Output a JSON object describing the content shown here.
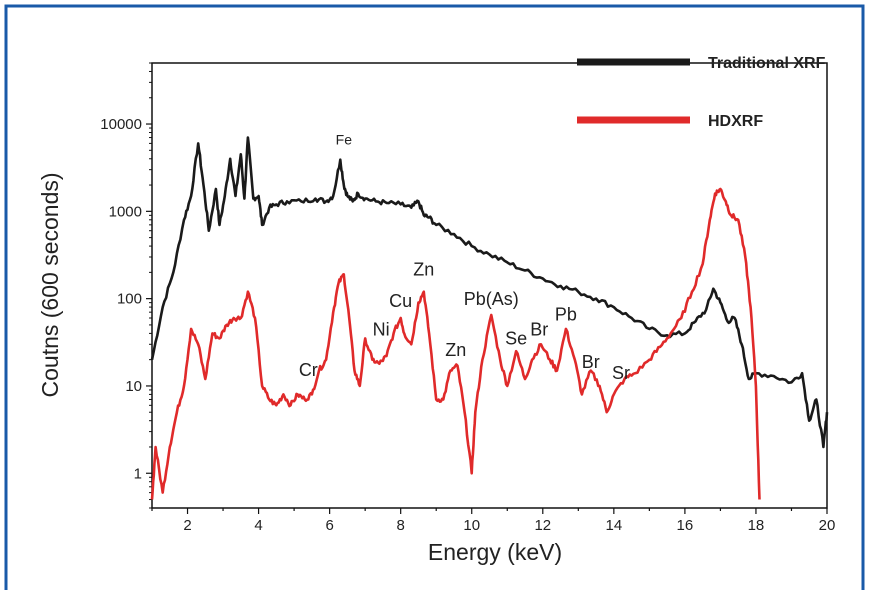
{
  "chart_data": {
    "type": "line",
    "title": "",
    "xlabel": "Energy (keV)",
    "ylabel": "Coutns (600 seconds)",
    "xlim": [
      1,
      20
    ],
    "ylim": [
      0.4,
      50000
    ],
    "y_scale": "log",
    "x_ticks": [
      2,
      4,
      6,
      8,
      10,
      12,
      14,
      16,
      18,
      20
    ],
    "x_tick_labels": [
      "2",
      "4",
      "6",
      "8",
      "10",
      "12",
      "14",
      "16",
      "18",
      "20"
    ],
    "y_ticks": [
      1,
      10,
      100,
      1000,
      10000
    ],
    "y_tick_labels": [
      "1",
      "10",
      "100",
      "1000",
      "10000"
    ],
    "grid": false,
    "legend_position": "top-right",
    "series": [
      {
        "name": "Traditional XRF",
        "color": "#1a1a1a",
        "x": [
          1.0,
          1.3,
          1.6,
          1.9,
          2.1,
          2.3,
          2.45,
          2.6,
          2.8,
          2.9,
          3.05,
          3.2,
          3.35,
          3.5,
          3.6,
          3.7,
          3.85,
          4.0,
          4.1,
          4.3,
          4.5,
          4.8,
          5.2,
          5.6,
          5.9,
          6.1,
          6.3,
          6.4,
          6.5,
          6.65,
          6.8,
          7.0,
          7.3,
          7.6,
          8.0,
          8.3,
          8.5,
          8.65,
          8.8,
          9.0,
          9.5,
          10.0,
          10.5,
          11.0,
          11.5,
          12.0,
          12.5,
          13.0,
          13.5,
          14.0,
          14.5,
          15.0,
          15.5,
          16.0,
          16.3,
          16.6,
          16.8,
          17.0,
          17.2,
          17.4,
          17.6,
          17.8,
          18.0,
          18.5,
          19.0,
          19.3,
          19.5,
          19.7,
          19.9,
          20.0
        ],
        "values": [
          20,
          80,
          200,
          800,
          1500,
          6000,
          2000,
          600,
          1800,
          700,
          1500,
          4000,
          1500,
          4500,
          1400,
          7000,
          1400,
          1500,
          700,
          1100,
          1200,
          1300,
          1300,
          1400,
          1300,
          1500,
          3900,
          2000,
          1500,
          1300,
          1600,
          1400,
          1300,
          1250,
          1200,
          1100,
          1300,
          900,
          850,
          700,
          550,
          400,
          320,
          260,
          210,
          170,
          140,
          120,
          100,
          80,
          60,
          45,
          38,
          40,
          55,
          75,
          130,
          90,
          55,
          60,
          30,
          12,
          14,
          13,
          11,
          14,
          4,
          7,
          2,
          5
        ]
      },
      {
        "name": "HDXRF",
        "color": "#e02a2a",
        "x": [
          1.0,
          1.1,
          1.3,
          1.5,
          1.7,
          1.9,
          2.1,
          2.3,
          2.5,
          2.7,
          2.9,
          3.1,
          3.3,
          3.5,
          3.7,
          3.9,
          4.1,
          4.3,
          4.5,
          4.7,
          4.9,
          5.1,
          5.3,
          5.5,
          5.7,
          5.9,
          6.1,
          6.25,
          6.4,
          6.55,
          6.7,
          6.85,
          7.0,
          7.2,
          7.4,
          7.6,
          7.8,
          8.0,
          8.1,
          8.3,
          8.5,
          8.65,
          8.8,
          9.0,
          9.2,
          9.4,
          9.6,
          9.8,
          10.0,
          10.1,
          10.3,
          10.55,
          10.8,
          11.0,
          11.25,
          11.5,
          11.7,
          11.95,
          12.2,
          12.4,
          12.65,
          12.9,
          13.1,
          13.35,
          13.6,
          13.8,
          14.0,
          14.3,
          14.6,
          15.0,
          15.3,
          15.6,
          15.9,
          16.2,
          16.5,
          16.7,
          16.85,
          17.0,
          17.15,
          17.3,
          17.5,
          17.7,
          17.85,
          18.0,
          18.1
        ],
        "values": [
          0.5,
          2,
          0.6,
          2,
          5,
          10,
          45,
          30,
          12,
          40,
          35,
          50,
          60,
          60,
          120,
          60,
          10,
          7,
          6,
          8,
          6,
          8,
          7,
          8,
          15,
          20,
          70,
          150,
          190,
          60,
          15,
          10,
          35,
          20,
          18,
          22,
          40,
          60,
          40,
          30,
          90,
          120,
          40,
          7,
          7,
          15,
          17,
          5,
          1,
          5,
          20,
          65,
          20,
          10,
          25,
          12,
          20,
          30,
          20,
          15,
          45,
          20,
          8,
          15,
          10,
          5,
          8,
          12,
          14,
          20,
          28,
          40,
          60,
          120,
          250,
          800,
          1600,
          1800,
          1300,
          900,
          800,
          300,
          80,
          10,
          0.5
        ]
      }
    ],
    "annotations": [
      {
        "text": "Fe",
        "x": 6.4,
        "y": 5800
      },
      {
        "text": "Cr",
        "x": 5.4,
        "y": 13
      },
      {
        "text": "Ni",
        "x": 7.45,
        "y": 38
      },
      {
        "text": "Cu",
        "x": 8.0,
        "y": 80
      },
      {
        "text": "Zn",
        "x": 8.65,
        "y": 185
      },
      {
        "text": "Zn",
        "x": 9.55,
        "y": 22
      },
      {
        "text": "Pb(As)",
        "x": 10.55,
        "y": 85
      },
      {
        "text": "Se",
        "x": 11.25,
        "y": 30
      },
      {
        "text": "Br",
        "x": 11.9,
        "y": 38
      },
      {
        "text": "Pb",
        "x": 12.65,
        "y": 56
      },
      {
        "text": "Br",
        "x": 13.35,
        "y": 16
      },
      {
        "text": "Sr",
        "x": 14.2,
        "y": 12
      }
    ]
  }
}
